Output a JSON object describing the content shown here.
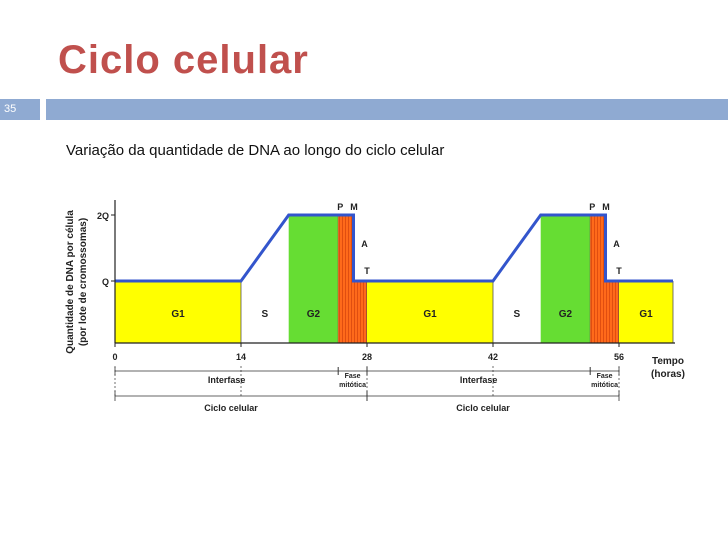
{
  "colors": {
    "title": "#c0504d",
    "accent_bar": "#8faad2",
    "g1": "#ffff00",
    "s": "#ffff00",
    "g2": "#66dd33",
    "mitosis": "#ff6a1a",
    "dna_line": "#3355cc",
    "axis": "#222222"
  },
  "slide": {
    "title": "Ciclo celular",
    "page_number": "35",
    "subtitle": "Variação da quantidade de DNA ao longo do ciclo celular"
  },
  "chart_data": {
    "type": "line",
    "title": "",
    "ylabel": "Quantidade de DNA por célula\n(por lote de cromossomas)",
    "ylabel_line1": "Quantidade de DNA por célula",
    "ylabel_line2": "(por lote de cromossomas)",
    "xlabel": "Tempo\n(horas)",
    "xlabel_line1": "Tempo",
    "xlabel_line2": "(horas)",
    "x_ticks": [
      "0",
      "14",
      "28",
      "42",
      "56"
    ],
    "xlim": [
      0,
      62
    ],
    "y_ticks": [
      "Q",
      "2Q"
    ],
    "y_levels": [
      1,
      2
    ],
    "series": [
      {
        "values": [
          {
            "x": 0,
            "y": 1
          },
          {
            "x": 14,
            "y": 1
          },
          {
            "x": 19.3,
            "y": 2
          },
          {
            "x": 26.5,
            "y": 2
          },
          {
            "x": 26.5,
            "y": 1
          },
          {
            "x": 42,
            "y": 1
          },
          {
            "x": 47.3,
            "y": 2
          },
          {
            "x": 54.5,
            "y": 2
          },
          {
            "x": 54.5,
            "y": 1
          },
          {
            "x": 62,
            "y": 1
          }
        ]
      }
    ],
    "phases": [
      {
        "label": "G1",
        "start": 0,
        "end": 14
      },
      {
        "label": "S",
        "start": 14,
        "end": 19.3
      },
      {
        "label": "G2",
        "start": 19.3,
        "end": 24.8
      },
      {
        "label": "",
        "start": 24.8,
        "end": 28,
        "mitosis": true
      },
      {
        "label": "G1",
        "start": 28,
        "end": 42
      },
      {
        "label": "S",
        "start": 42,
        "end": 47.3
      },
      {
        "label": "G2",
        "start": 47.3,
        "end": 52.8
      },
      {
        "label": "",
        "start": 52.8,
        "end": 56,
        "mitosis": true
      },
      {
        "label": "G1",
        "start": 56,
        "end": 62
      }
    ],
    "mitosis_labels": [
      {
        "p": "P",
        "m": "M",
        "a": "A",
        "t": "T"
      },
      {
        "p": "P",
        "m": "M",
        "a": "A",
        "t": "T"
      }
    ],
    "spans_level1": [
      {
        "label": "Interfase",
        "start": 0,
        "end": 24.8
      },
      {
        "label_line1": "Fase",
        "label_line2": "mitótica",
        "start": 24.8,
        "end": 28
      },
      {
        "label": "Interfase",
        "start": 28,
        "end": 52.8
      },
      {
        "label_line1": "Fase",
        "label_line2": "mitótica",
        "start": 52.8,
        "end": 56
      }
    ],
    "spans_level2": [
      {
        "label": "Ciclo celular",
        "start": 0,
        "end": 28
      },
      {
        "label": "Ciclo celular",
        "start": 28,
        "end": 56
      }
    ]
  }
}
